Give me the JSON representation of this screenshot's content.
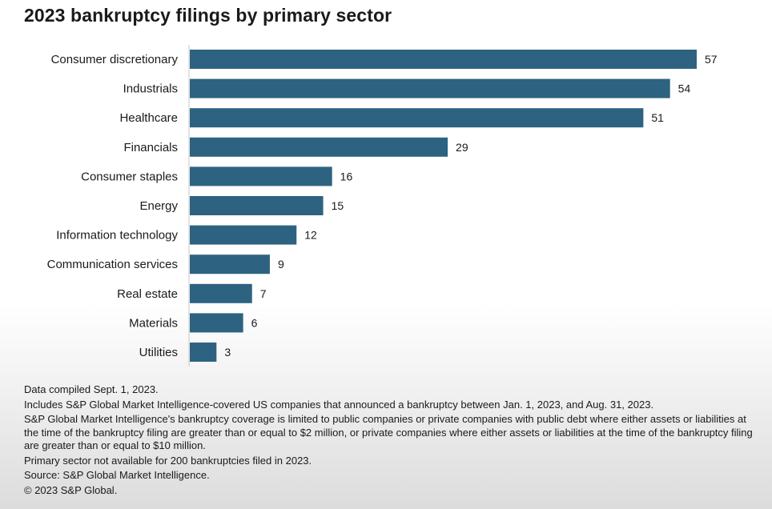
{
  "title": "2023 bankruptcy filings by primary sector",
  "colors": {
    "bar": "#2d6380",
    "axis": "#c7c7c7"
  },
  "chart_data": {
    "type": "bar",
    "orientation": "horizontal",
    "title": "2023 bankruptcy filings by primary sector",
    "xlabel": "",
    "ylabel": "",
    "categories": [
      "Consumer discretionary",
      "Industrials",
      "Healthcare",
      "Financials",
      "Consumer staples",
      "Energy",
      "Information technology",
      "Communication services",
      "Real estate",
      "Materials",
      "Utilities"
    ],
    "values": [
      57,
      54,
      51,
      29,
      16,
      15,
      12,
      9,
      7,
      6,
      3
    ],
    "xlim": [
      0,
      57
    ],
    "grid": false,
    "data_labels": true
  },
  "notes": [
    "Data compiled Sept. 1, 2023.",
    "Includes S&P Global Market Intelligence-covered US companies that announced a bankruptcy between Jan. 1, 2023, and Aug. 31, 2023.",
    "S&P Global Market Intelligence's bankruptcy coverage is limited to public companies or private companies with public debt where either assets or liabilities at the time of the bankruptcy filing are greater than or equal to $2 million, or private companies where either assets or liabilities at the time of the bankruptcy filing are greater than or equal to $10 million.",
    "Primary sector not available for 200 bankruptcies filed in 2023.",
    "Source: S&P Global Market Intelligence.",
    "© 2023 S&P Global."
  ]
}
